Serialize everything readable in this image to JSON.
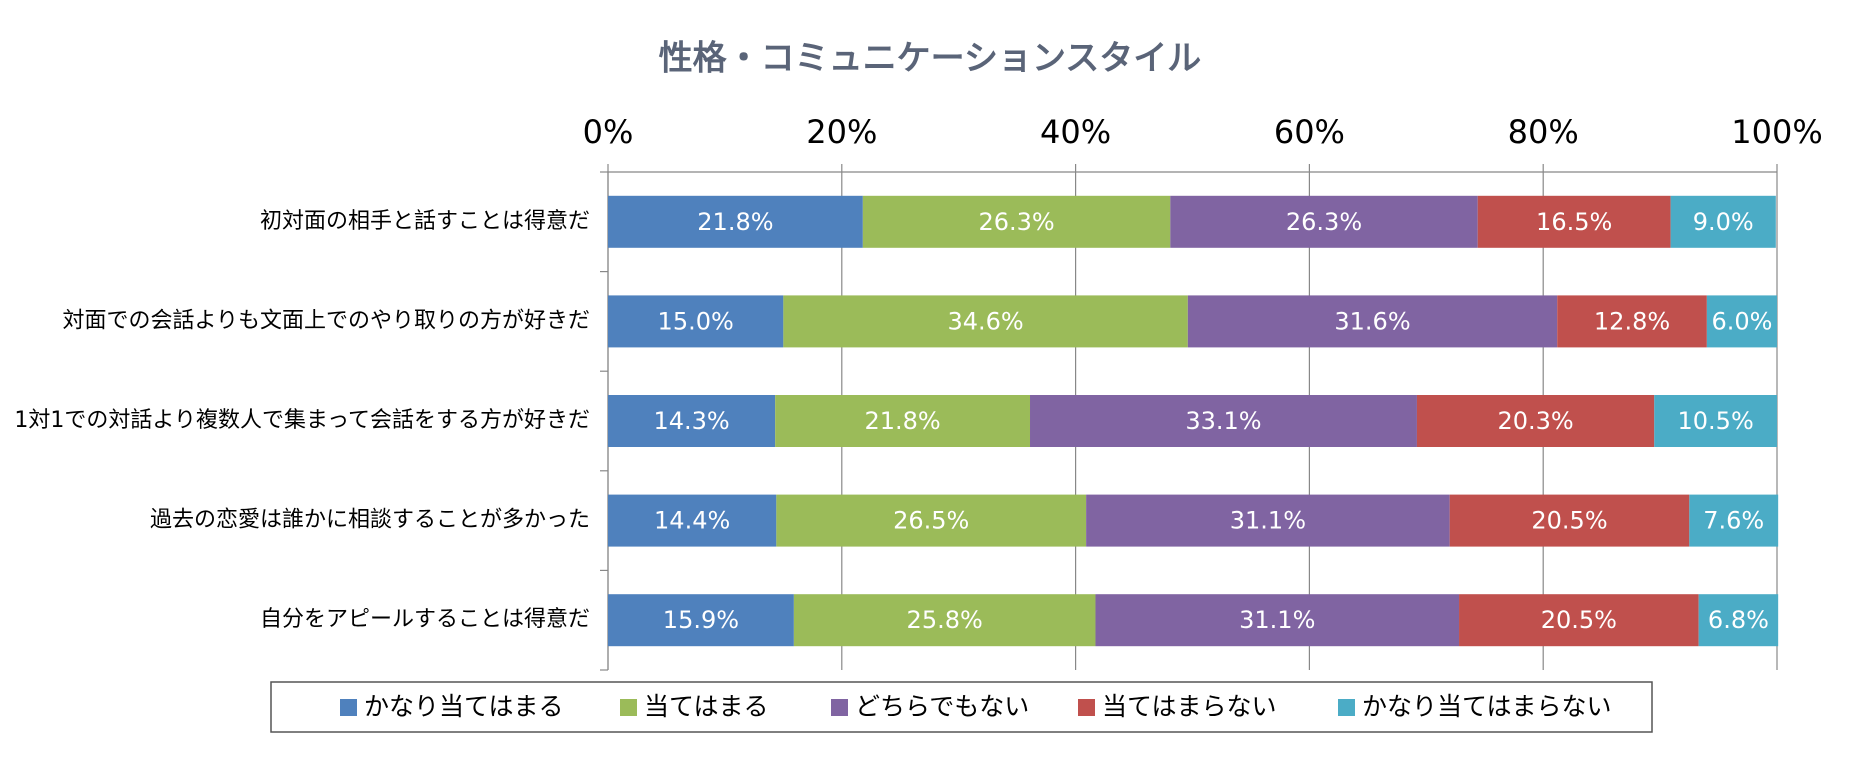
{
  "chart_data": {
    "type": "stacked_bar_horizontal",
    "title": "性格・コミュニケーションスタイル",
    "categories": [
      "初対面の相手と話すことは得意だ",
      "対面での会話よりも文面上でのやり取りの方が好きだ",
      "1対1での対話より複数人で集まって会話をする方が好きだ",
      "過去の恋愛は誰かに相談することが多かった",
      "自分をアピールすることは得意だ"
    ],
    "series": [
      {
        "name": "かなり当てはまる",
        "color": "#4f81bd",
        "values": [
          21.8,
          15.0,
          14.3,
          14.4,
          15.9
        ],
        "value_labels": [
          "21.8%",
          "15.0%",
          "14.3%",
          "14.4%",
          "15.9%"
        ]
      },
      {
        "name": "当てはまる",
        "color": "#9bbb59",
        "values": [
          26.3,
          34.6,
          21.8,
          26.5,
          25.8
        ],
        "value_labels": [
          "26.3%",
          "34.6%",
          "21.8%",
          "26.5%",
          "25.8%"
        ]
      },
      {
        "name": "どちらでもない",
        "color": "#8064a2",
        "values": [
          26.3,
          31.6,
          33.1,
          31.1,
          31.1
        ],
        "value_labels": [
          "26.3%",
          "31.6%",
          "33.1%",
          "31.1%",
          "31.1%"
        ]
      },
      {
        "name": "当てはまらない",
        "color": "#c0504d",
        "values": [
          16.5,
          12.8,
          20.3,
          20.5,
          20.5
        ],
        "value_labels": [
          "16.5%",
          "12.8%",
          "20.3%",
          "20.5%",
          "20.5%"
        ]
      },
      {
        "name": "かなり当てはまらない",
        "color": "#4bacc6",
        "values": [
          9.0,
          6.0,
          10.5,
          7.6,
          6.8
        ],
        "value_labels": [
          "9.0%",
          "6.0%",
          "10.5%",
          "7.6%",
          "6.8%"
        ]
      }
    ],
    "xlim": [
      0,
      100
    ],
    "xticks": [
      {
        "value": 0,
        "label": "0%"
      },
      {
        "value": 20,
        "label": "20%"
      },
      {
        "value": 40,
        "label": "40%"
      },
      {
        "value": 60,
        "label": "60%"
      },
      {
        "value": 80,
        "label": "80%"
      },
      {
        "value": 100,
        "label": "100%"
      }
    ],
    "grid": true,
    "legend": "bottom"
  }
}
